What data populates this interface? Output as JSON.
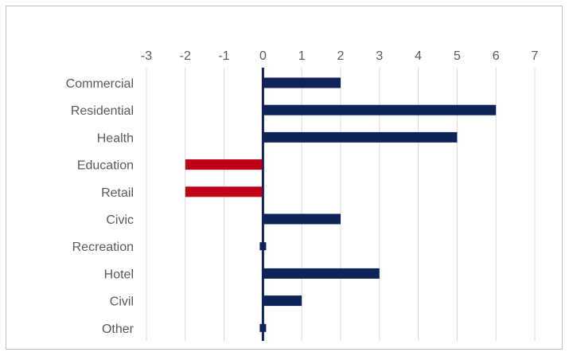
{
  "chart_data": {
    "type": "bar",
    "orientation": "horizontal",
    "categories": [
      "Commercial",
      "Residential",
      "Health",
      "Education",
      "Retail",
      "Civic",
      "Recreation",
      "Hotel",
      "Civil",
      "Other"
    ],
    "values": [
      2,
      6,
      5,
      -2,
      -2,
      2,
      0,
      3,
      1,
      0
    ],
    "xlim": [
      -3,
      7
    ],
    "xticks": [
      -3,
      -2,
      -1,
      0,
      1,
      2,
      3,
      4,
      5,
      6,
      7
    ],
    "x_axis_position": "top",
    "grid": "vertical",
    "legend": "none",
    "colors": {
      "positive": "#0e2358",
      "negative": "#c00018",
      "grid": "#d9d9d9",
      "text": "#595959"
    }
  }
}
